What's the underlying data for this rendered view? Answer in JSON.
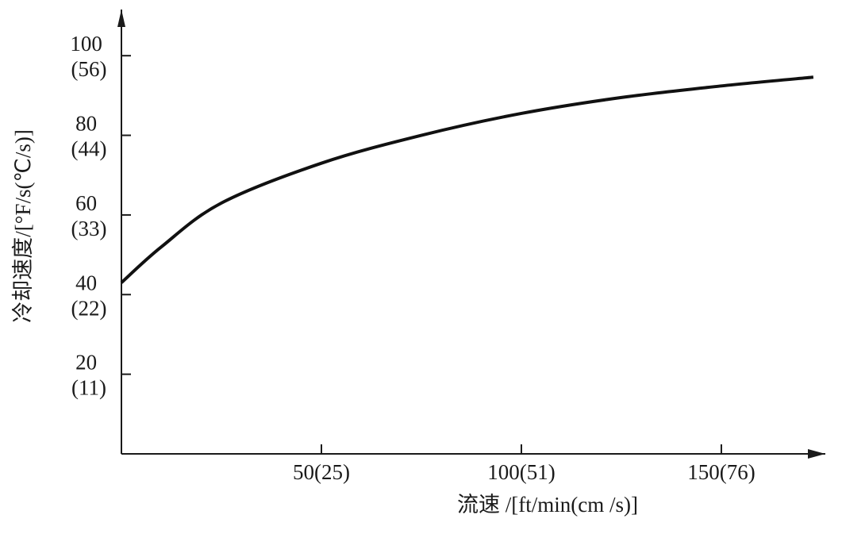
{
  "chart_data": {
    "type": "line",
    "x_label": "流速 /[ft/min(cm /s)]",
    "y_label": "冷却速度/[°F/s(℃/s)]",
    "x": [
      0,
      10,
      25,
      50,
      75,
      100,
      125,
      150,
      173
    ],
    "series": [
      {
        "color": "#111111",
        "values": [
          43,
          52,
          63,
          73,
          80,
          85.5,
          89.5,
          92.4,
          94.6
        ]
      }
    ],
    "xlim": [
      0,
      176
    ],
    "ylim": [
      0,
      110
    ],
    "xticks": [
      {
        "value": 50,
        "label": "50(25)"
      },
      {
        "value": 100,
        "label": "100(51)"
      },
      {
        "value": 150,
        "label": "150(76)"
      }
    ],
    "yticks": [
      {
        "value": 20,
        "label": "20 (11)"
      },
      {
        "value": 40,
        "label": "40 (22)"
      },
      {
        "value": 60,
        "label": "60 (33)"
      },
      {
        "value": 80,
        "label": "80 (44)"
      },
      {
        "value": 100,
        "label": "100 (56)"
      }
    ],
    "grid": false
  }
}
